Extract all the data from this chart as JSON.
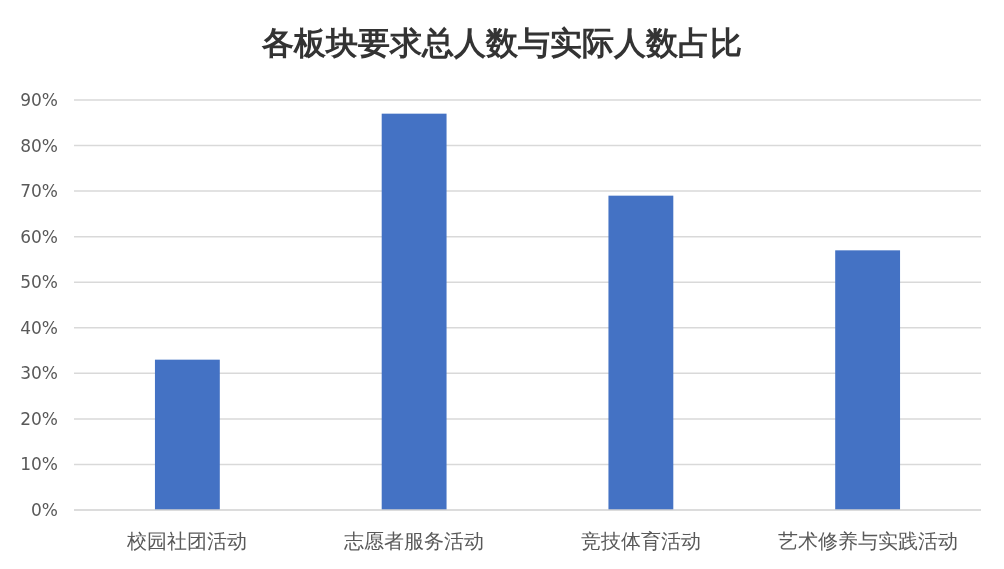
{
  "chart_data": {
    "type": "bar",
    "title": "各板块要求总人数与实际人数占比",
    "categories": [
      "校园社团活动",
      "志愿者服务活动",
      "竞技体育活动",
      "艺术修养与实践活动"
    ],
    "values": [
      33,
      87,
      69,
      57
    ],
    "color": "#4472c4",
    "ylim": [
      0,
      90
    ],
    "yticks": [
      {
        "value": 0,
        "label": "0%"
      },
      {
        "value": 10,
        "label": "10%"
      },
      {
        "value": 20,
        "label": "20%"
      },
      {
        "value": 30,
        "label": "30%"
      },
      {
        "value": 40,
        "label": "40%"
      },
      {
        "value": 50,
        "label": "50%"
      },
      {
        "value": 60,
        "label": "60%"
      },
      {
        "value": 70,
        "label": "70%"
      },
      {
        "value": 80,
        "label": "80%"
      },
      {
        "value": 90,
        "label": "90%"
      }
    ],
    "grid": "y"
  }
}
